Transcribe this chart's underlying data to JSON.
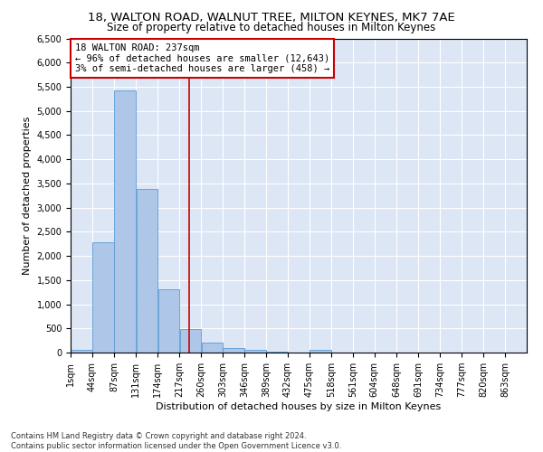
{
  "title1": "18, WALTON ROAD, WALNUT TREE, MILTON KEYNES, MK7 7AE",
  "title2": "Size of property relative to detached houses in Milton Keynes",
  "xlabel": "Distribution of detached houses by size in Milton Keynes",
  "ylabel": "Number of detached properties",
  "footnote1": "Contains HM Land Registry data © Crown copyright and database right 2024.",
  "footnote2": "Contains public sector information licensed under the Open Government Licence v3.0.",
  "annotation_title": "18 WALTON ROAD: 237sqm",
  "annotation_line1": "← 96% of detached houses are smaller (12,643)",
  "annotation_line2": "3% of semi-detached houses are larger (458) →",
  "property_size": 237,
  "bin_labels": [
    "1sqm",
    "44sqm",
    "87sqm",
    "131sqm",
    "174sqm",
    "217sqm",
    "260sqm",
    "303sqm",
    "346sqm",
    "389sqm",
    "432sqm",
    "475sqm",
    "518sqm",
    "561sqm",
    "604sqm",
    "648sqm",
    "691sqm",
    "734sqm",
    "777sqm",
    "820sqm",
    "863sqm"
  ],
  "bin_edges": [
    1,
    44,
    87,
    131,
    174,
    217,
    260,
    303,
    346,
    389,
    432,
    475,
    518,
    561,
    604,
    648,
    691,
    734,
    777,
    820,
    863,
    906
  ],
  "bar_heights": [
    60,
    2280,
    5420,
    3380,
    1310,
    490,
    215,
    95,
    50,
    10,
    5,
    60,
    0,
    0,
    0,
    0,
    0,
    0,
    0,
    0,
    0
  ],
  "bar_color": "#aec6e8",
  "bar_edgecolor": "#5b9bd5",
  "grid_color": "#cccccc",
  "bg_color": "#dce6f5",
  "vline_color": "#cc0000",
  "vline_x": 237,
  "annotation_box_edgecolor": "#cc0000",
  "ylim": [
    0,
    6500
  ],
  "yticks": [
    0,
    500,
    1000,
    1500,
    2000,
    2500,
    3000,
    3500,
    4000,
    4500,
    5000,
    5500,
    6000,
    6500
  ],
  "title1_fontsize": 9.5,
  "title2_fontsize": 8.5,
  "xlabel_fontsize": 8,
  "ylabel_fontsize": 8,
  "tick_fontsize": 7,
  "annotation_fontsize": 7.5,
  "footnote_fontsize": 6
}
